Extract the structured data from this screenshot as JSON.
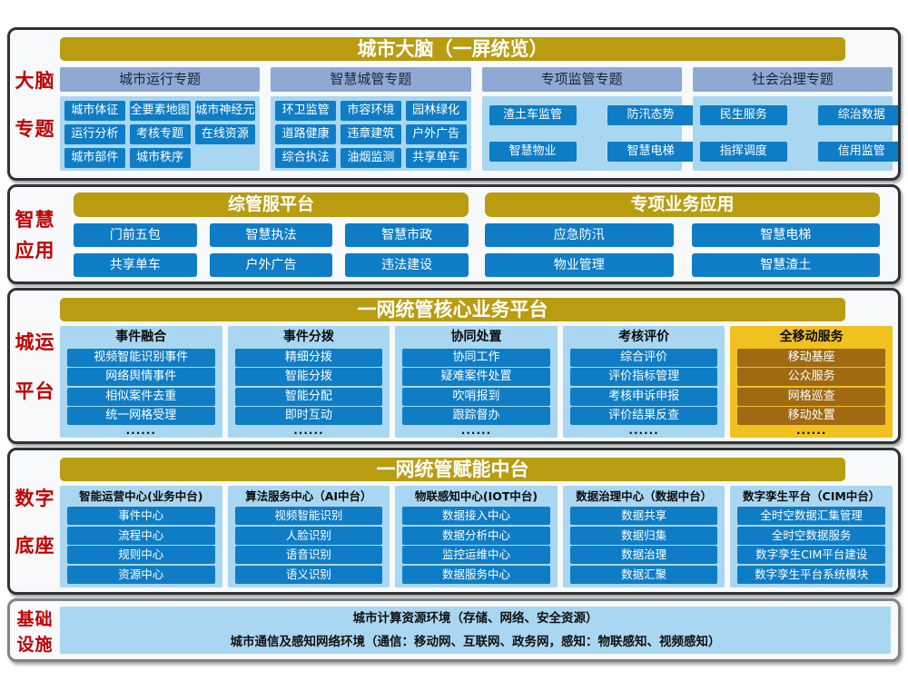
{
  "colors": {
    "gold_header": "#B99C10",
    "subheader_blue": "#8FA9D4",
    "panel_light_blue": "#A9D7F2",
    "chip_blue": "#0F7DC6",
    "mobile_column_gold": "#F0C11F",
    "mobile_chip_brown": "#A06A12",
    "side_label_red": "#C00000"
  },
  "brain": {
    "side_label": [
      "大脑",
      "专题"
    ],
    "header": "城市大脑（一屏统览）",
    "columns": [
      {
        "title": "城市运行专题",
        "items": [
          "城市体征",
          "全要素地图",
          "城市神经元",
          "运行分析",
          "考核专题",
          "在线资源",
          "城市部件",
          "城市秩序"
        ]
      },
      {
        "title": "智慧城管专题",
        "items": [
          "环卫监管",
          "市容环境",
          "园林绿化",
          "道路健康",
          "违章建筑",
          "户外广告",
          "综合执法",
          "油烟监测",
          "共享单车"
        ]
      },
      {
        "title": "专项监管专题",
        "items": [
          "渣土车监管",
          "防汛态势",
          "智慧物业",
          "智慧电梯"
        ]
      },
      {
        "title": "社会治理专题",
        "items": [
          "民生服务",
          "综治数据",
          "指挥调度",
          "信用监管"
        ]
      }
    ]
  },
  "apps": {
    "side_label": [
      "智慧",
      "应用"
    ],
    "groups": [
      {
        "header": "综管服平台",
        "items": [
          "门前五包",
          "智慧执法",
          "智慧市政",
          "共享单车",
          "户外广告",
          "违法建设"
        ]
      },
      {
        "header": "专项业务应用",
        "items": [
          "应急防汛",
          "智慧电梯",
          "物业管理",
          "智慧渣土"
        ]
      }
    ]
  },
  "core": {
    "side_label": [
      "城运",
      "平台"
    ],
    "header": "一网统管核心业务平台",
    "columns": [
      {
        "title": "事件融合",
        "items": [
          "视频智能识别事件",
          "网络舆情事件",
          "相似案件去重",
          "统一网格受理"
        ],
        "dots": "......"
      },
      {
        "title": "事件分拨",
        "items": [
          "精细分拨",
          "智能分拨",
          "智能分配",
          "即时互动"
        ],
        "dots": "......"
      },
      {
        "title": "协同处置",
        "items": [
          "协同工作",
          "疑难案件处置",
          "吹哨报到",
          "跟踪督办"
        ],
        "dots": "......"
      },
      {
        "title": "考核评价",
        "items": [
          "综合评价",
          "评价指标管理",
          "考核申诉申报",
          "评价结果反查"
        ],
        "dots": "......"
      },
      {
        "title": "全移动服务",
        "items": [
          "移动基座",
          "公众服务",
          "网格巡查",
          "移动处置"
        ],
        "dots": "......"
      }
    ]
  },
  "middle": {
    "side_label": [
      "数字",
      "底座"
    ],
    "header": "一网统管赋能中台",
    "columns": [
      {
        "title": "智能运营中心(业务中台)",
        "items": [
          "事件中心",
          "流程中心",
          "规则中心",
          "资源中心"
        ]
      },
      {
        "title": "算法服务中心（AI中台）",
        "items": [
          "视频智能识别",
          "人脸识别",
          "语音识别",
          "语义识别"
        ]
      },
      {
        "title": "物联感知中心(IOT中台)",
        "items": [
          "数据接入中心",
          "数据分析中心",
          "监控运维中心",
          "数据服务中心"
        ]
      },
      {
        "title": "数据治理中心（数据中台）",
        "items": [
          "数据共享",
          "数据归集",
          "数据治理",
          "数据汇聚"
        ]
      },
      {
        "title": "数字孪生平台（CIM中台）",
        "items": [
          "全时空数据汇集管理",
          "全时空数据服务",
          "数字孪生CIM平台建设",
          "数字孪生平台系统模块"
        ]
      }
    ]
  },
  "infra": {
    "side_label": [
      "基础",
      "设施"
    ],
    "rows": [
      "城市计算资源环境（存储、网络、安全资源）",
      "城市通信及感知网络环境（通信：移动网、互联网、政务网，感知：物联感知、视频感知）"
    ]
  }
}
